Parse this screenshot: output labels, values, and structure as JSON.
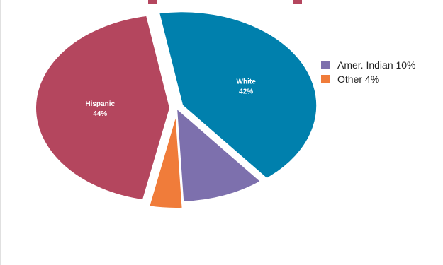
{
  "chart_data": {
    "type": "pie",
    "title": "",
    "slices": [
      {
        "label": "White",
        "value": 42,
        "color": "#0080ad",
        "label_inside": true,
        "exploded": true
      },
      {
        "label": "Amer. Indian",
        "value": 10,
        "color": "#7d70ad",
        "label_inside": false,
        "exploded": false
      },
      {
        "label": "Other",
        "value": 4,
        "color": "#f07c3a",
        "label_inside": false,
        "exploded": true
      },
      {
        "label": "Hispanic",
        "value": 44,
        "color": "#b4465e",
        "label_inside": true,
        "exploded": true
      }
    ],
    "legend": {
      "placement": "right",
      "entries": [
        {
          "label": "Amer. Indian 10%",
          "color": "#7d70ad"
        },
        {
          "label": "Other 4%",
          "color": "#f07c3a"
        }
      ]
    }
  }
}
